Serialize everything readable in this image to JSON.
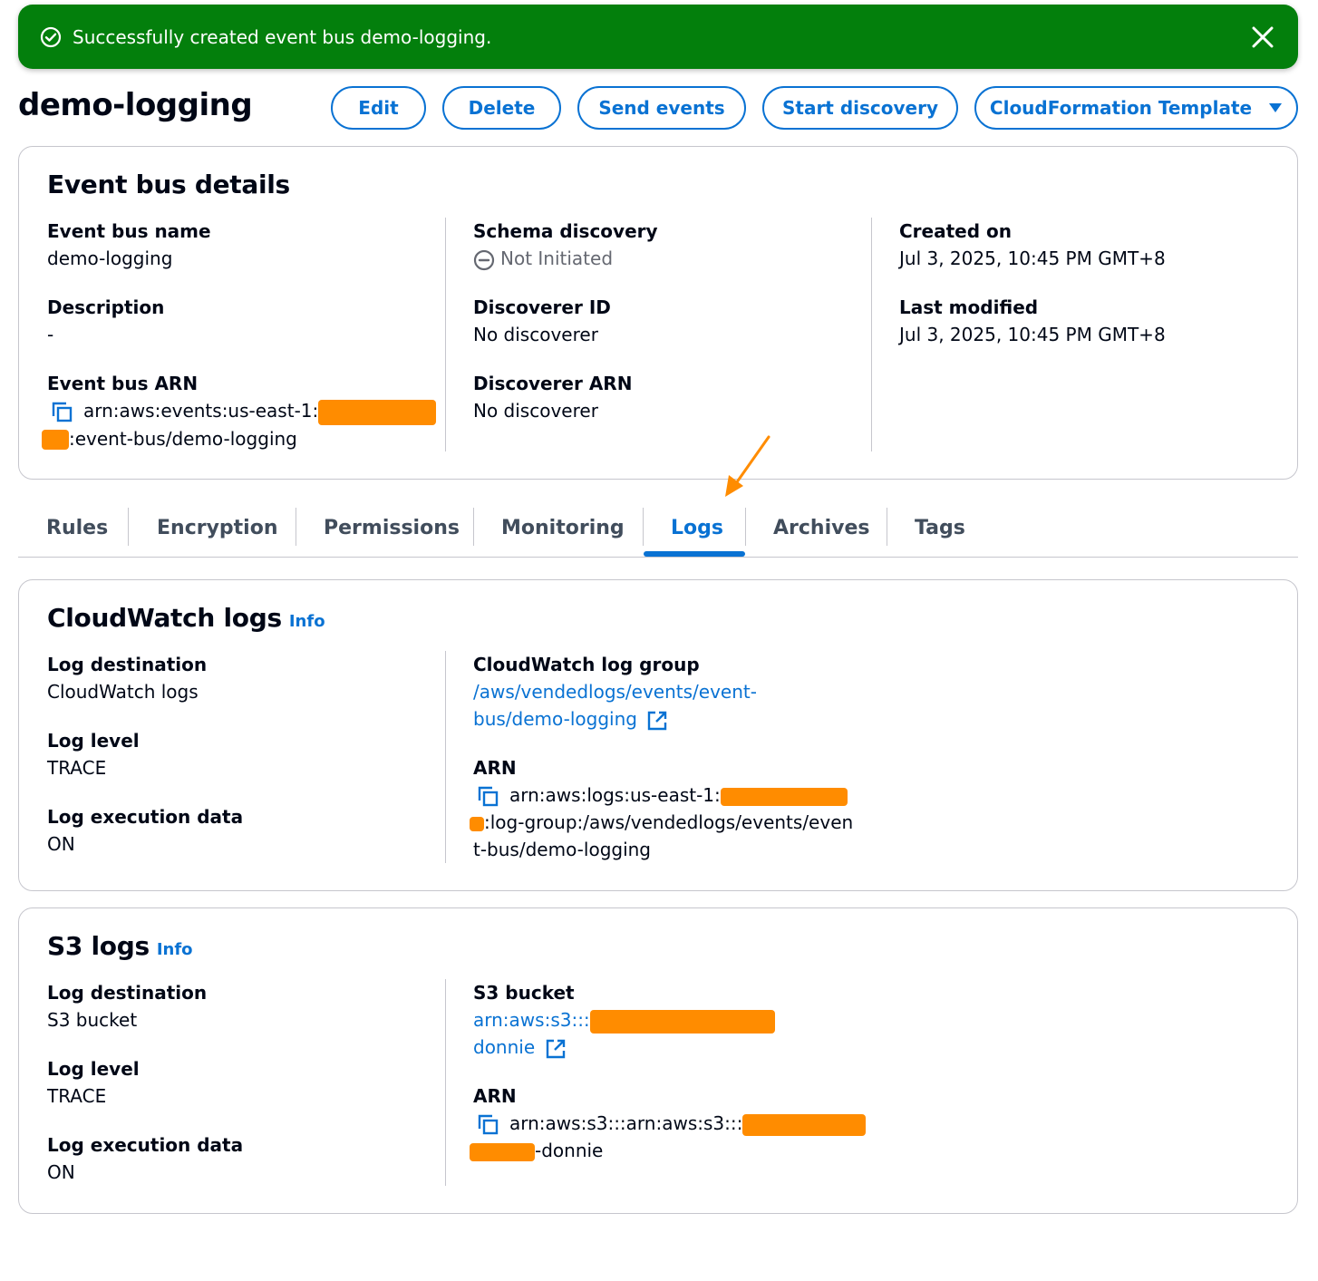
{
  "flash": {
    "message": "Successfully created event bus demo-logging."
  },
  "page": {
    "title": "demo-logging"
  },
  "actions": {
    "edit": "Edit",
    "delete": "Delete",
    "send_events": "Send events",
    "start_discovery": "Start discovery",
    "cloudformation": "CloudFormation Template"
  },
  "details": {
    "title": "Event bus details",
    "event_bus_name": {
      "label": "Event bus name",
      "value": "demo-logging"
    },
    "description": {
      "label": "Description",
      "value": "-"
    },
    "event_bus_arn": {
      "label": "Event bus ARN",
      "line1": "arn:aws:events:us-east-1:",
      "line2": ":event-bus/demo-logging"
    },
    "schema_discovery": {
      "label": "Schema discovery",
      "value": "Not Initiated"
    },
    "discoverer_id": {
      "label": "Discoverer ID",
      "value": "No discoverer"
    },
    "discoverer_arn": {
      "label": "Discoverer ARN",
      "value": "No discoverer"
    },
    "created_on": {
      "label": "Created on",
      "value": "Jul 3, 2025, 10:45 PM GMT+8"
    },
    "last_modified": {
      "label": "Last modified",
      "value": "Jul 3, 2025, 10:45 PM GMT+8"
    }
  },
  "tabs": [
    {
      "label": "Rules"
    },
    {
      "label": "Encryption"
    },
    {
      "label": "Permissions"
    },
    {
      "label": "Monitoring"
    },
    {
      "label": "Logs"
    },
    {
      "label": "Archives"
    },
    {
      "label": "Tags"
    }
  ],
  "active_tab": "Logs",
  "cloudwatch": {
    "title": "CloudWatch logs",
    "info": "Info",
    "log_destination": {
      "label": "Log destination",
      "value": "CloudWatch logs"
    },
    "log_level": {
      "label": "Log level",
      "value": "TRACE"
    },
    "log_execution_data": {
      "label": "Log execution data",
      "value": "ON"
    },
    "log_group": {
      "label": "CloudWatch log group",
      "line1": "/aws/vendedlogs/events/event-",
      "line2": "bus/demo-logging"
    },
    "arn": {
      "label": "ARN",
      "line1": "arn:aws:logs:us-east-1:",
      "line2": ":log-group:/aws/vendedlogs/events/even",
      "line3": "t-bus/demo-logging"
    }
  },
  "s3": {
    "title": "S3 logs",
    "info": "Info",
    "log_destination": {
      "label": "Log destination",
      "value": "S3 bucket"
    },
    "log_level": {
      "label": "Log level",
      "value": "TRACE"
    },
    "log_execution_data": {
      "label": "Log execution data",
      "value": "ON"
    },
    "bucket": {
      "label": "S3 bucket",
      "line1": "arn:aws:s3:::",
      "line2": "donnie"
    },
    "arn": {
      "label": "ARN",
      "line1": "arn:aws:s3:::arn:aws:s3:::",
      "line2": "-donnie"
    }
  },
  "colors": {
    "success": "#037f0c",
    "link": "#0972d3",
    "redaction": "#ff8c00",
    "annotation_arrow": "#ff8c00"
  }
}
